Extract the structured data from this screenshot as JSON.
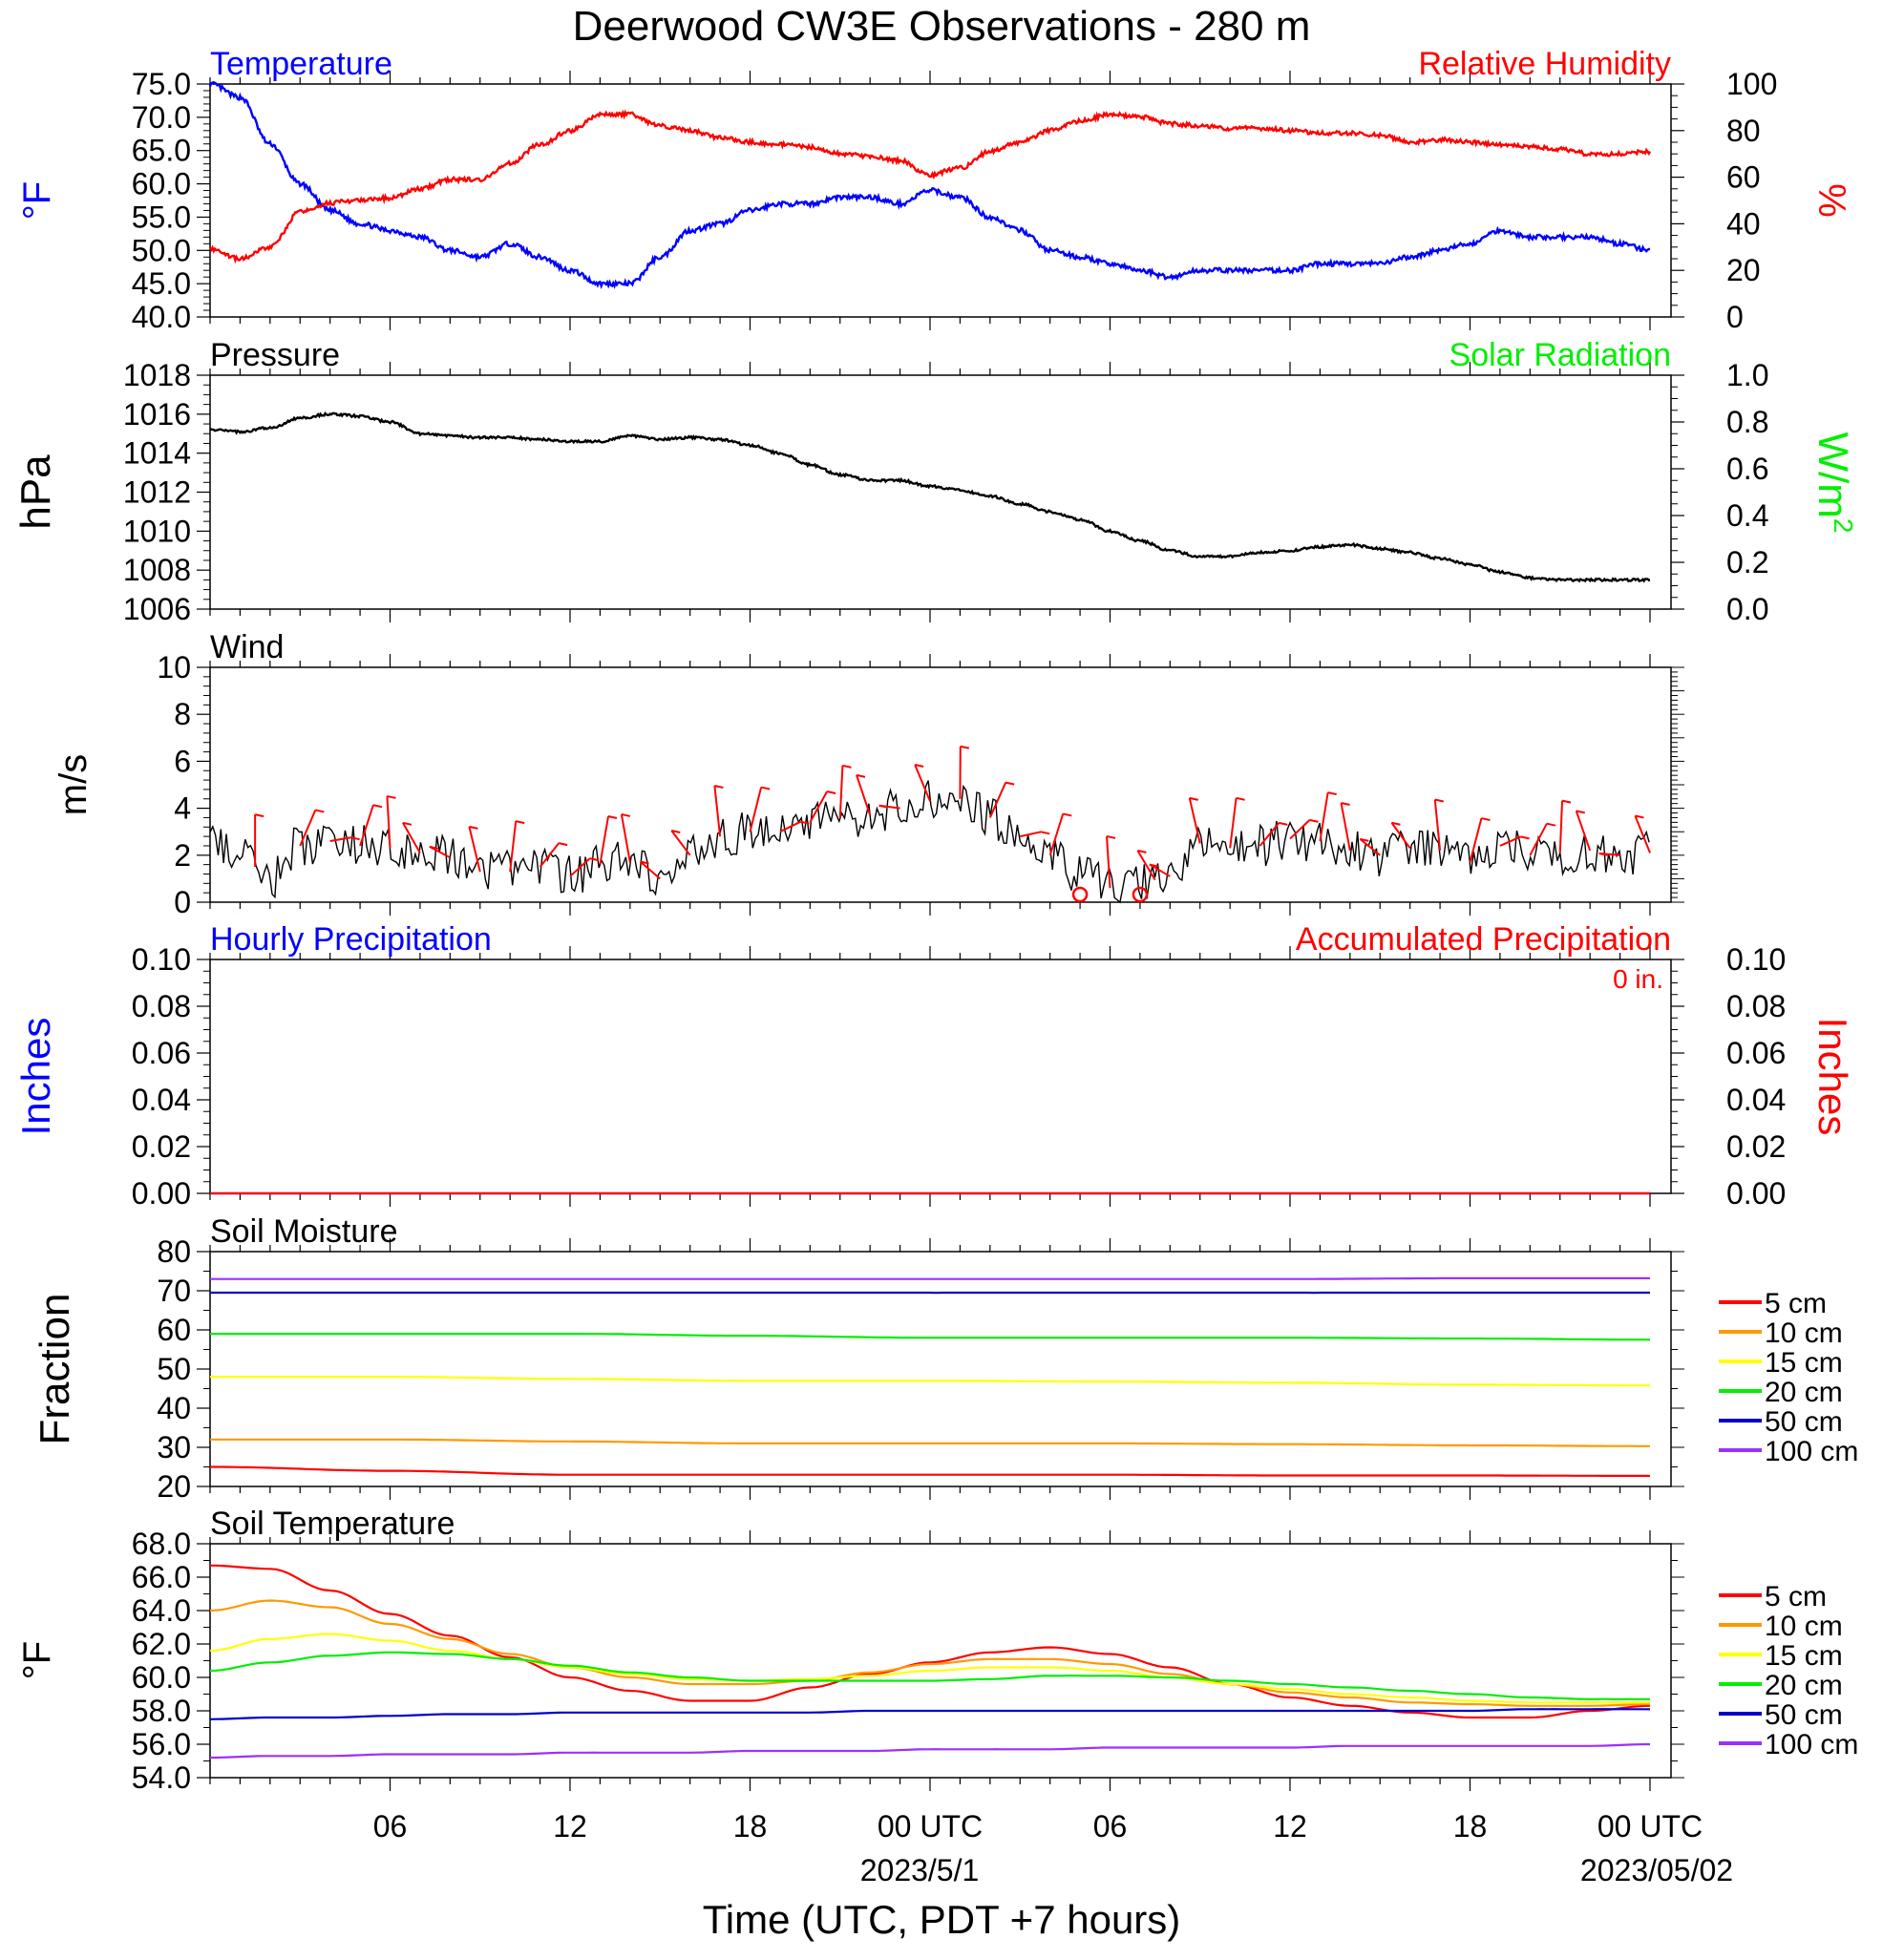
{
  "title": "Deerwood CW3E Observations - 280 m",
  "x_axis": {
    "label": "Time (UTC, PDT +7 hours)",
    "ticks": [
      "06",
      "12",
      "18",
      "00 UTC",
      "06",
      "12",
      "18",
      "00 UTC"
    ],
    "date_labels": [
      "2023/5/1",
      "2023/05/02"
    ]
  },
  "colors": {
    "blue": "#0000ff",
    "red": "#ff0000",
    "green": "#00ee00",
    "black": "#000000",
    "orange": "#ff9900",
    "yellow": "#ffff00",
    "darkblue": "#0000cc",
    "purple": "#9b30ff"
  },
  "chart_data": [
    {
      "type": "line",
      "left_title": "Temperature",
      "right_title": "Relative Humidity",
      "left_unit": "°F",
      "right_unit": "%",
      "left_ticks": [
        "75.0",
        "70.0",
        "65.0",
        "60.0",
        "55.0",
        "50.0",
        "45.0",
        "40.0"
      ],
      "right_ticks": [
        "100",
        "80",
        "60",
        "40",
        "20",
        "0"
      ],
      "ylim_left": [
        40,
        75
      ],
      "ylim_right": [
        0,
        100
      ],
      "x_hours": [
        0,
        1,
        2,
        3,
        4,
        5,
        6,
        7,
        8,
        9,
        10,
        11,
        12,
        13,
        14,
        15,
        16,
        17,
        18,
        19,
        20,
        21,
        22,
        23,
        24,
        25,
        26,
        27,
        28,
        29,
        30,
        31,
        32,
        33,
        34,
        35,
        36,
        37,
        38,
        39,
        40,
        41,
        42,
        43,
        44,
        45,
        46,
        47,
        48
      ],
      "series": [
        {
          "name": "Temperature",
          "axis": "left",
          "color": "blue",
          "values": [
            75,
            73,
            66,
            60,
            56,
            54,
            53,
            52,
            50,
            49,
            51,
            49,
            47,
            45,
            45,
            49,
            53,
            54,
            56,
            57,
            57,
            58,
            58,
            57,
            59,
            58,
            55,
            53,
            50,
            49,
            48,
            47,
            46,
            47,
            47,
            47,
            47,
            48,
            48,
            48,
            49,
            50,
            51,
            53,
            52,
            52,
            52,
            51,
            50
          ]
        },
        {
          "name": "Relative Humidity",
          "axis": "right",
          "color": "red",
          "values": [
            29,
            25,
            30,
            45,
            49,
            50,
            51,
            55,
            59,
            59,
            66,
            74,
            80,
            87,
            87,
            82,
            80,
            77,
            75,
            74,
            73,
            70,
            69,
            67,
            61,
            64,
            71,
            75,
            80,
            84,
            87,
            86,
            83,
            82,
            81,
            81,
            80,
            79,
            79,
            78,
            75,
            76,
            75,
            74,
            73,
            72,
            70,
            70,
            71
          ]
        }
      ]
    },
    {
      "type": "line",
      "left_title": "Pressure",
      "right_title": "Solar Radiation",
      "left_unit": "hPa",
      "right_unit": "W/m",
      "right_unit_sup": "2",
      "left_ticks": [
        "1018",
        "1016",
        "1014",
        "1012",
        "1010",
        "1008",
        "1006"
      ],
      "right_ticks": [
        "1.0",
        "0.8",
        "0.6",
        "0.4",
        "0.2",
        "0.0"
      ],
      "ylim_left": [
        1006,
        1018
      ],
      "ylim_right": [
        0,
        1
      ],
      "series": [
        {
          "name": "Pressure",
          "axis": "left",
          "color": "black",
          "values": [
            1015.2,
            1015.1,
            1015.3,
            1015.8,
            1016.0,
            1015.9,
            1015.6,
            1015.0,
            1014.9,
            1014.8,
            1014.8,
            1014.7,
            1014.6,
            1014.6,
            1014.9,
            1014.7,
            1014.8,
            1014.7,
            1014.4,
            1014.0,
            1013.4,
            1012.9,
            1012.6,
            1012.6,
            1012.3,
            1012.1,
            1011.8,
            1011.4,
            1011.0,
            1010.6,
            1010.0,
            1009.5,
            1009.0,
            1008.7,
            1008.7,
            1008.9,
            1009.0,
            1009.2,
            1009.3,
            1009.1,
            1008.9,
            1008.6,
            1008.3,
            1007.9,
            1007.6,
            1007.5,
            1007.5,
            1007.5,
            1007.5
          ]
        }
      ]
    },
    {
      "type": "line",
      "left_title": "Wind",
      "left_unit": "m/s",
      "left_ticks": [
        "10",
        "8",
        "6",
        "4",
        "2",
        "0"
      ],
      "ylim_left": [
        0,
        10
      ],
      "series": [
        {
          "name": "Wind",
          "axis": "left",
          "color": "black",
          "values": [
            2.4,
            2.0,
            1.0,
            2.4,
            2.6,
            2.4,
            2.3,
            2.1,
            1.9,
            1.3,
            1.3,
            1.5,
            1.1,
            1.6,
            1.7,
            1.0,
            2.0,
            2.8,
            3.0,
            3.0,
            3.4,
            3.6,
            3.7,
            4.0,
            4.3,
            4.4,
            3.6,
            2.8,
            2.0,
            1.2,
            0.6,
            0.8,
            1.1,
            2.5,
            2.3,
            2.4,
            2.7,
            2.6,
            2.2,
            2.0,
            2.3,
            2.2,
            1.7,
            2.4,
            2.0,
            2.1,
            2.2,
            2.0,
            2.1
          ]
        }
      ],
      "barbs": {
        "color": "red",
        "hours": [
          1.5,
          3,
          4,
          5,
          6,
          7,
          8,
          9,
          10,
          11,
          12,
          13,
          14,
          15,
          16,
          17,
          18,
          19,
          20,
          21,
          22,
          23,
          24,
          25,
          26,
          27,
          28,
          30,
          31.5,
          32,
          33,
          34,
          35,
          36,
          37,
          38,
          39,
          40,
          41,
          42,
          43,
          44,
          45,
          46,
          47,
          48
        ],
        "calm_hours": [
          29,
          31
        ]
      }
    },
    {
      "type": "line",
      "left_title": "Hourly Precipitation",
      "right_title": "Accumulated Precipitation",
      "left_unit": "Inches",
      "right_unit": "Inches",
      "annotation": "0 in.",
      "left_ticks": [
        "0.10",
        "0.08",
        "0.06",
        "0.04",
        "0.02",
        "0.00"
      ],
      "right_ticks": [
        "0.10",
        "0.08",
        "0.06",
        "0.04",
        "0.02",
        "0.00"
      ],
      "ylim_left": [
        0,
        0.1
      ],
      "ylim_right": [
        0,
        0.1
      ],
      "series": [
        {
          "name": "Hourly Precipitation",
          "axis": "left",
          "color": "blue",
          "values": [
            0,
            0
          ]
        },
        {
          "name": "Accumulated Precipitation",
          "axis": "right",
          "color": "red",
          "values": [
            0,
            0
          ]
        }
      ]
    },
    {
      "type": "line",
      "left_title": "Soil Moisture",
      "left_unit": "Fraction",
      "left_ticks": [
        "80",
        "70",
        "60",
        "50",
        "40",
        "30",
        "20"
      ],
      "ylim_left": [
        20,
        80
      ],
      "legend": [
        "5 cm",
        "10 cm",
        "15 cm",
        "20 cm",
        "50 cm",
        "100 cm"
      ],
      "series": [
        {
          "name": "5 cm",
          "color": "red",
          "values": [
            25,
            24,
            23,
            23,
            23,
            23,
            22.8,
            22.8,
            22.7
          ]
        },
        {
          "name": "10 cm",
          "color": "orange",
          "values": [
            32,
            32,
            31.5,
            31,
            31,
            31,
            30.8,
            30.5,
            30.3
          ]
        },
        {
          "name": "15 cm",
          "color": "yellow",
          "values": [
            48,
            48,
            47.5,
            47,
            47,
            46.8,
            46.5,
            46,
            45.8
          ]
        },
        {
          "name": "20 cm",
          "color": "green",
          "values": [
            59,
            59,
            59,
            58.5,
            58,
            58,
            58,
            57.8,
            57.5
          ]
        },
        {
          "name": "50 cm",
          "color": "darkblue",
          "values": [
            69.5,
            69.5,
            69.5,
            69.5,
            69.5,
            69.5,
            69.5,
            69.5,
            69.5
          ]
        },
        {
          "name": "100 cm",
          "color": "purple",
          "values": [
            73,
            73,
            73,
            73,
            73,
            73,
            73,
            73.2,
            73.2
          ]
        }
      ]
    },
    {
      "type": "line",
      "left_title": "Soil Temperature",
      "left_unit": "°F",
      "left_ticks": [
        "68.0",
        "66.0",
        "64.0",
        "62.0",
        "60.0",
        "58.0",
        "56.0",
        "54.0"
      ],
      "ylim_left": [
        54,
        68
      ],
      "legend": [
        "5 cm",
        "10 cm",
        "15 cm",
        "20 cm",
        "50 cm",
        "100 cm"
      ],
      "series": [
        {
          "name": "5 cm",
          "color": "red",
          "values": [
            66.7,
            66.5,
            65.2,
            63.8,
            62.5,
            61.2,
            60.0,
            59.2,
            58.6,
            58.6,
            59.4,
            60.2,
            60.9,
            61.5,
            61.8,
            61.4,
            60.6,
            59.6,
            58.8,
            58.3,
            57.9,
            57.6,
            57.6,
            58.0,
            58.3
          ]
        },
        {
          "name": "10 cm",
          "color": "orange",
          "values": [
            64.0,
            64.6,
            64.2,
            63.2,
            62.3,
            61.4,
            60.6,
            60.0,
            59.6,
            59.6,
            59.8,
            60.3,
            60.8,
            61.1,
            61.1,
            60.8,
            60.2,
            59.6,
            59.1,
            58.8,
            58.5,
            58.4,
            58.3,
            58.3,
            58.4
          ]
        },
        {
          "name": "15 cm",
          "color": "yellow",
          "values": [
            61.6,
            62.3,
            62.6,
            62.2,
            61.6,
            61.1,
            60.6,
            60.2,
            59.9,
            59.8,
            59.9,
            60.1,
            60.4,
            60.6,
            60.6,
            60.4,
            60.0,
            59.6,
            59.3,
            59.0,
            58.8,
            58.6,
            58.5,
            58.5,
            58.5
          ]
        },
        {
          "name": "20 cm",
          "color": "green",
          "values": [
            60.4,
            60.9,
            61.3,
            61.5,
            61.4,
            61.1,
            60.7,
            60.3,
            60.0,
            59.8,
            59.8,
            59.8,
            59.8,
            59.9,
            60.1,
            60.1,
            60.0,
            59.8,
            59.6,
            59.4,
            59.2,
            59.0,
            58.8,
            58.7,
            58.7
          ]
        },
        {
          "name": "50 cm",
          "color": "darkblue",
          "values": [
            57.5,
            57.6,
            57.6,
            57.7,
            57.8,
            57.8,
            57.9,
            57.9,
            57.9,
            57.9,
            57.9,
            58.0,
            58.0,
            58.0,
            58.0,
            58.0,
            58.0,
            58.0,
            58.0,
            58.0,
            58.0,
            58.0,
            58.1,
            58.1,
            58.1
          ]
        },
        {
          "name": "100 cm",
          "color": "purple",
          "values": [
            55.2,
            55.3,
            55.3,
            55.4,
            55.4,
            55.4,
            55.5,
            55.5,
            55.5,
            55.6,
            55.6,
            55.6,
            55.7,
            55.7,
            55.7,
            55.8,
            55.8,
            55.8,
            55.8,
            55.9,
            55.9,
            55.9,
            55.9,
            55.9,
            56.0
          ]
        }
      ]
    }
  ]
}
